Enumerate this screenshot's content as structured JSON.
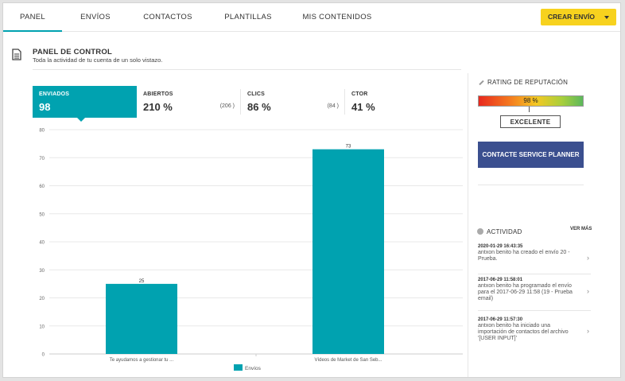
{
  "nav": {
    "tabs": [
      {
        "label": "PANEL",
        "active": true
      },
      {
        "label": "ENVÍOS",
        "active": false
      },
      {
        "label": "CONTACTOS",
        "active": false
      },
      {
        "label": "PLANTILLAS",
        "active": false
      },
      {
        "label": "MIS CONTENIDOS",
        "active": false
      }
    ],
    "cta_label": "CREAR ENVÍO",
    "cta_icon": "chevron-down-icon"
  },
  "header": {
    "icon": "document-icon",
    "title": "PANEL DE CONTROL",
    "subtitle": "Toda la actividad de tu cuenta de un solo vistazo."
  },
  "stats": [
    {
      "label": "ENVIADOS",
      "value": "98",
      "count": "",
      "active": true
    },
    {
      "label": "ABIERTOS",
      "value": "210 %",
      "count": "(206 )",
      "active": false
    },
    {
      "label": "CLICS",
      "value": "86 %",
      "count": "(84 )",
      "active": false
    },
    {
      "label": "CTOR",
      "value": "41 %",
      "count": "",
      "active": false
    }
  ],
  "chart_data": {
    "type": "bar",
    "categories": [
      "Te ayudamos a gestionar tu ...",
      "Vídeos de Market de San Seb..."
    ],
    "series": [
      {
        "name": "Envíos",
        "values": [
          25,
          73
        ],
        "color": "#00a2b0"
      }
    ],
    "ylim": [
      0,
      80
    ],
    "yticks": [
      0,
      10,
      20,
      30,
      40,
      50,
      60,
      70,
      80
    ],
    "grid": true,
    "legend": "bottom"
  },
  "reputation": {
    "title": "RATING DE REPUTACIÓN",
    "value_label": "98 %",
    "value": 98,
    "rating_label": "EXCELENTE"
  },
  "planner_label": "CONTACTE SERVICE PLANNER",
  "activity": {
    "title": "ACTIVIDAD",
    "see_more": "VER MÁS",
    "items": [
      {
        "when": "2020-01-29 16:43:35",
        "what": "antxon benito ha creado el envío 20 - Prueba."
      },
      {
        "when": "2017-06-29 11:58:01",
        "what": "antxon benito ha programado el envío para el 2017-06-29 11:58 (19 - Prueba email)"
      },
      {
        "when": "2017-06-29 11:57:30",
        "what": "antxon benito ha iniciado una importación de contactos del archivo '[USER INPUT]'"
      }
    ]
  },
  "colors": {
    "accent": "#00a2b0",
    "cta": "#f7d21e",
    "planner": "#3b4f8f"
  }
}
